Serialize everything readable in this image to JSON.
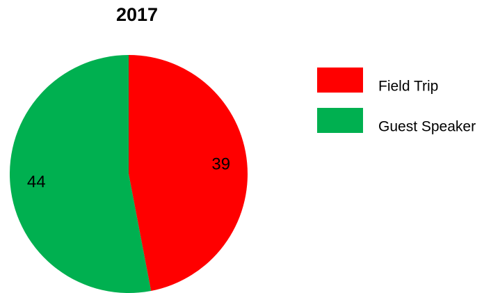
{
  "chart_data": {
    "type": "pie",
    "title": "2017",
    "categories": [
      "Field Trip",
      "Guest Speaker"
    ],
    "values": [
      39,
      44
    ],
    "colors": [
      "#ff0000",
      "#00b050"
    ],
    "legend": "right"
  }
}
